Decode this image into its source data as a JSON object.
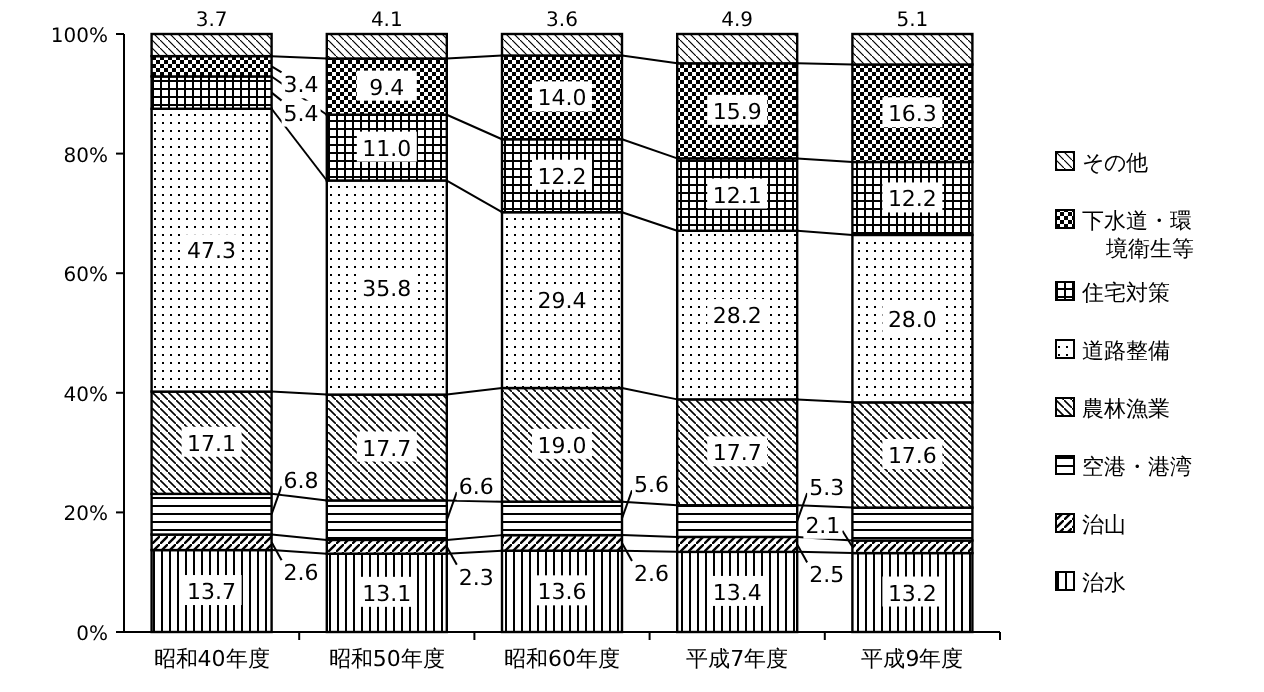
{
  "chart_data": {
    "type": "bar",
    "stacked": true,
    "categories": [
      "昭和40年度",
      "昭和50年度",
      "昭和60年度",
      "平成7年度",
      "平成9年度"
    ],
    "ylim": [
      0,
      100
    ],
    "yticks": [
      {
        "value": 0,
        "label": "0%"
      },
      {
        "value": 20,
        "label": "20%"
      },
      {
        "value": 40,
        "label": "40%"
      },
      {
        "value": 60,
        "label": "60%"
      },
      {
        "value": 80,
        "label": "80%"
      },
      {
        "value": 100,
        "label": "100%"
      }
    ],
    "legend": "right",
    "grid": false,
    "series": [
      {
        "name": "治水",
        "color": "#000000",
        "values": [
          13.7,
          13.1,
          13.6,
          13.4,
          13.2
        ],
        "value_labels": [
          "13.7",
          "13.1",
          "13.6",
          "13.4",
          "13.2"
        ]
      },
      {
        "name": "治山",
        "color": "#000000",
        "values": [
          2.6,
          2.3,
          2.6,
          2.5,
          2.1
        ],
        "value_labels": [
          "2.6",
          "2.3",
          "2.6",
          "2.5",
          "2.1"
        ]
      },
      {
        "name": "空港・港湾",
        "color": "#000000",
        "values": [
          6.8,
          6.6,
          5.6,
          5.3,
          5.5
        ],
        "value_labels": [
          "6.8",
          "6.6",
          "5.6",
          "5.3",
          null
        ]
      },
      {
        "name": "農林漁業",
        "color": "#000000",
        "values": [
          17.1,
          17.7,
          19.0,
          17.7,
          17.6
        ],
        "value_labels": [
          "17.1",
          "17.7",
          "19.0",
          "17.7",
          "17.6"
        ]
      },
      {
        "name": "道路整備",
        "color": "#000000",
        "values": [
          47.3,
          35.8,
          29.4,
          28.2,
          28.0
        ],
        "value_labels": [
          "47.3",
          "35.8",
          "29.4",
          "28.2",
          "28.0"
        ]
      },
      {
        "name": "住宅対策",
        "color": "#000000",
        "values": [
          5.4,
          11.0,
          12.2,
          12.1,
          12.2
        ],
        "value_labels": [
          "5.4",
          "11.0",
          "12.2",
          "12.1",
          "12.2"
        ]
      },
      {
        "name": "下水道・環境衛生等",
        "color": "#000000",
        "values": [
          3.4,
          9.4,
          14.0,
          15.9,
          16.3
        ],
        "value_labels": [
          "3.4",
          "9.4",
          "14.0",
          "15.9",
          "16.3"
        ]
      },
      {
        "name": "その他",
        "color": "#000000",
        "values": [
          3.7,
          4.1,
          3.6,
          4.9,
          5.1
        ],
        "value_labels": [
          "3.7",
          "4.1",
          "3.6",
          "4.9",
          "5.1"
        ]
      }
    ]
  }
}
